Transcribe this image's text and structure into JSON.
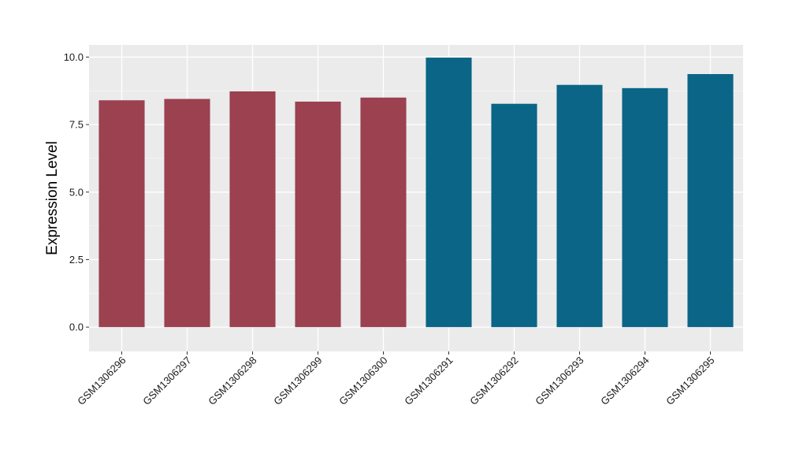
{
  "chart_data": {
    "type": "bar",
    "title": "",
    "xlabel": "",
    "ylabel": "Expression Level",
    "ylim": [
      -0.9,
      10.45
    ],
    "yticks": [
      0.0,
      2.5,
      5.0,
      7.5,
      10.0
    ],
    "ytick_labels": [
      "0.0",
      "2.5",
      "5.0",
      "7.5",
      "10.0"
    ],
    "grid": true,
    "legend": "none",
    "categories": [
      "GSM1306296",
      "GSM1306297",
      "GSM1306298",
      "GSM1306299",
      "GSM1306300",
      "GSM1306291",
      "GSM1306292",
      "GSM1306293",
      "GSM1306294",
      "GSM1306295"
    ],
    "values": [
      8.4,
      8.45,
      8.73,
      8.35,
      8.5,
      9.98,
      8.27,
      8.97,
      8.85,
      9.37
    ],
    "groups": [
      "a",
      "a",
      "a",
      "a",
      "a",
      "b",
      "b",
      "b",
      "b",
      "b"
    ],
    "colors": {
      "a": "#9b4150",
      "b": "#0b6586",
      "panel": "#ebebeb",
      "grid_major": "#ffffff",
      "grid_minor": "#f5f5f5"
    }
  }
}
